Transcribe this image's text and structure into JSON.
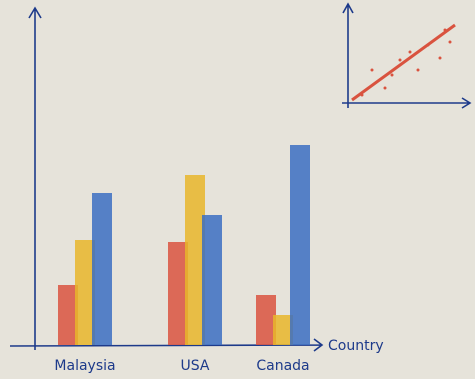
{
  "chart_data": {
    "type": "bar",
    "categories": [
      "Malaysia",
      "USA",
      "Canada"
    ],
    "x_label": "Country",
    "series": [
      {
        "color": "#d9533f",
        "values": [
          60,
          103,
          50
        ]
      },
      {
        "color": "#e8b62a",
        "values": [
          105,
          170,
          30
        ]
      },
      {
        "color": "#3b6fc2",
        "values": [
          152,
          130,
          200
        ]
      }
    ],
    "ylim": [
      0,
      335
    ]
  }
}
